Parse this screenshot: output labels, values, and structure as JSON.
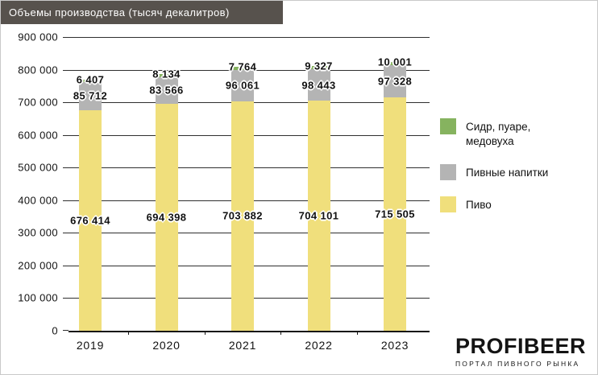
{
  "titlebar": {
    "title": "Объемы производства (тысяч декалитров)"
  },
  "chart_data": {
    "type": "bar",
    "stacked": true,
    "title": "Объемы производства (тысяч декалитров)",
    "categories": [
      "2019",
      "2020",
      "2021",
      "2022",
      "2023"
    ],
    "series": [
      {
        "name": "Пиво",
        "color": "#f0df7c",
        "values": [
          676414,
          694398,
          703882,
          704101,
          715505
        ]
      },
      {
        "name": "Пивные напитки",
        "color": "#b4b4b4",
        "values": [
          85712,
          83566,
          96061,
          98443,
          97328
        ]
      },
      {
        "name": "Сидр, пуаре, медовуха",
        "color": "#86b35f",
        "values": [
          6407,
          8134,
          7764,
          9327,
          10001
        ]
      }
    ],
    "ylim": [
      0,
      900000
    ],
    "ytick_step": 100000,
    "grid": true,
    "legend_position": "right",
    "value_label_format": "space-thousands"
  },
  "legend": {
    "items": [
      {
        "label": "Сидр, пуаре,\nмедовуха",
        "color": "#86b35f"
      },
      {
        "label": "Пивные напитки",
        "color": "#b4b4b4"
      },
      {
        "label": "Пиво",
        "color": "#f0df7c"
      }
    ]
  },
  "footer": {
    "brand": "PROFIBEER",
    "tagline": "ПОРТАЛ ПИВНОГО РЫНКА"
  }
}
